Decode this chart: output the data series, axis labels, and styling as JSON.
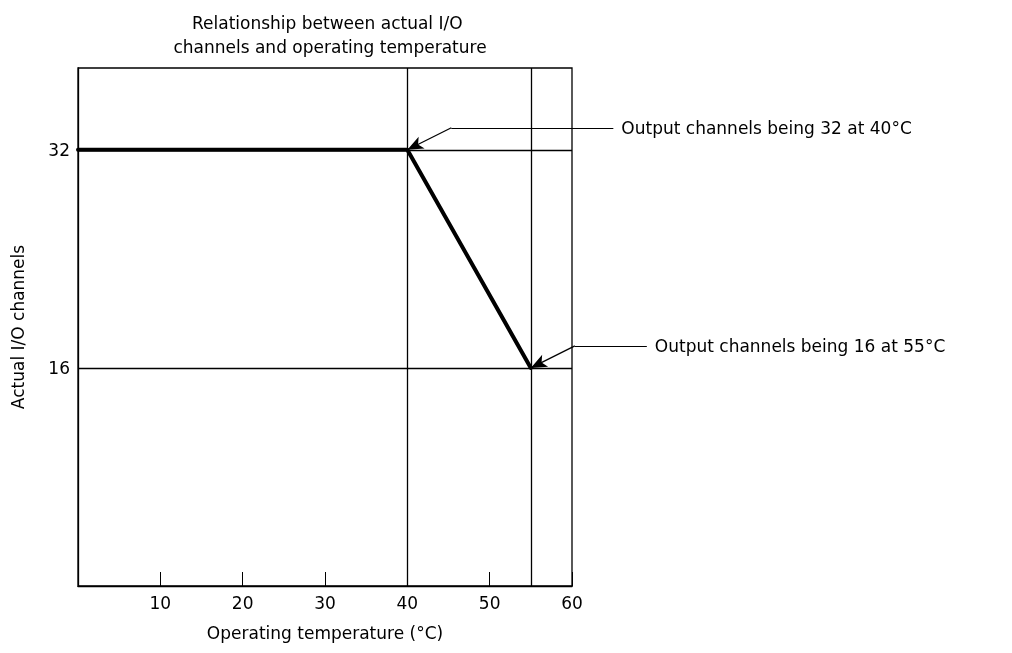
{
  "chart_data": {
    "type": "line",
    "title": "Relationship between actual I/O channels and operating temperature",
    "xlabel": "Operating temperature (°C)",
    "ylabel": "Actual I/O channels",
    "x": [
      0,
      40,
      55
    ],
    "series": [
      {
        "color": "#000000",
        "values": [
          32,
          32,
          16
        ]
      }
    ],
    "xlim": [
      0,
      60
    ],
    "xticks": [
      10,
      20,
      30,
      40,
      50,
      60
    ],
    "ylim": [
      0,
      38
    ],
    "yticks": [
      16,
      32
    ],
    "grid": false,
    "marker": "none",
    "line_style": "solid",
    "ref_lines": [
      {
        "axis": "y",
        "value": 32
      },
      {
        "axis": "y",
        "value": 16
      },
      {
        "axis": "x",
        "value": 40
      },
      {
        "axis": "x",
        "value": 55
      }
    ],
    "annotations": [
      "Output channels being 32 at 40°C",
      "Output channels being 16 at 55°C"
    ]
  }
}
